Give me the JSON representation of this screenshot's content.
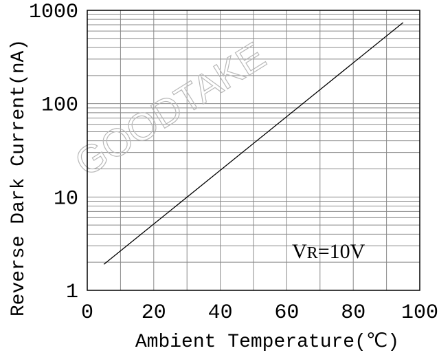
{
  "chart_data": {
    "type": "line",
    "title": "",
    "xlabel": "Ambient Temperature(℃)",
    "ylabel": "Reverse Dark Current(nA)",
    "xlim": [
      0,
      100
    ],
    "ylim": [
      1,
      1000
    ],
    "yscale": "log",
    "grid": true,
    "x_ticks": [
      0,
      20,
      40,
      60,
      80,
      100
    ],
    "x_tick_labels": [
      "0",
      "20",
      "40",
      "60",
      "80",
      "100"
    ],
    "y_ticks": [
      1,
      10,
      100,
      1000
    ],
    "y_tick_labels": [
      "1",
      "10",
      "100",
      "1000"
    ],
    "series": [
      {
        "x": [
          5,
          95
        ],
        "y": [
          1.9,
          740
        ]
      }
    ],
    "annotation": {
      "main": "V",
      "subscript": "R",
      "rest": "=10V"
    },
    "watermark": "GOODTAKE",
    "colors": {
      "line": "#000000",
      "grid": "#888888",
      "frame": "#000000",
      "watermark": "#b8b8b8"
    }
  }
}
